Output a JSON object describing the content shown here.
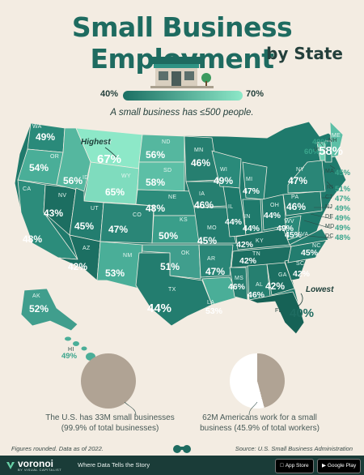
{
  "title": "Small Business Employment",
  "subtitle": "by State",
  "legend": {
    "min": "40%",
    "max": "70%"
  },
  "note": "A small business has ≤500 people.",
  "annotations": {
    "highest": "Highest",
    "lowest": "Lowest"
  },
  "colors": {
    "dark": "#1b6f63",
    "light": "#8de8c8",
    "background": "#f3ece2",
    "title": "#1e6b60",
    "footer": "#1a3c38"
  },
  "states": [
    {
      "code": "WA",
      "value": "49%"
    },
    {
      "code": "OR",
      "value": "54%"
    },
    {
      "code": "CA",
      "value": "48%"
    },
    {
      "code": "ID",
      "value": "56%"
    },
    {
      "code": "NV",
      "value": "43%"
    },
    {
      "code": "MT",
      "value": "67%"
    },
    {
      "code": "WY",
      "value": "65%"
    },
    {
      "code": "UT",
      "value": "45%"
    },
    {
      "code": "AZ",
      "value": "42%"
    },
    {
      "code": "CO",
      "value": "47%"
    },
    {
      "code": "NM",
      "value": "53%"
    },
    {
      "code": "ND",
      "value": "56%"
    },
    {
      "code": "SD",
      "value": "58%"
    },
    {
      "code": "NE",
      "value": "48%"
    },
    {
      "code": "KS",
      "value": "50%"
    },
    {
      "code": "OK",
      "value": "51%"
    },
    {
      "code": "TX",
      "value": "44%"
    },
    {
      "code": "MN",
      "value": "46%"
    },
    {
      "code": "IA",
      "value": "46%"
    },
    {
      "code": "MO",
      "value": "45%"
    },
    {
      "code": "AR",
      "value": "47%"
    },
    {
      "code": "LA",
      "value": "53%"
    },
    {
      "code": "WI",
      "value": "49%"
    },
    {
      "code": "IL",
      "value": "44%"
    },
    {
      "code": "MI",
      "value": "47%"
    },
    {
      "code": "IN",
      "value": "44%"
    },
    {
      "code": "OH",
      "value": "44%"
    },
    {
      "code": "KY",
      "value": "42%"
    },
    {
      "code": "TN",
      "value": "42%"
    },
    {
      "code": "MS",
      "value": "46%"
    },
    {
      "code": "AL",
      "value": "46%"
    },
    {
      "code": "GA",
      "value": "42%"
    },
    {
      "code": "FL",
      "value": "40%"
    },
    {
      "code": "SC",
      "value": "42%"
    },
    {
      "code": "NC",
      "value": "45%"
    },
    {
      "code": "VA",
      "value": "45%"
    },
    {
      "code": "WV",
      "value": "49%"
    },
    {
      "code": "PA",
      "value": "46%"
    },
    {
      "code": "NY",
      "value": "47%"
    },
    {
      "code": "VT",
      "value": "60%"
    },
    {
      "code": "NH",
      "value": "49%"
    },
    {
      "code": "ME",
      "value": "58%"
    },
    {
      "code": "MA",
      "value": "45%"
    },
    {
      "code": "RI",
      "value": "51%"
    },
    {
      "code": "CT",
      "value": "47%"
    },
    {
      "code": "NJ",
      "value": "49%"
    },
    {
      "code": "DE",
      "value": "49%"
    },
    {
      "code": "MD",
      "value": "49%"
    },
    {
      "code": "DC",
      "value": "48%"
    },
    {
      "code": "AK",
      "value": "52%"
    },
    {
      "code": "HI",
      "value": "49%"
    }
  ],
  "stats": [
    {
      "text": "The U.S. has 33M small businesses (99.9% of total businesses)",
      "fraction": 0.999
    },
    {
      "text": "62M Americans work for a small business (45.9% of total workers)",
      "fraction": 0.459
    }
  ],
  "footnote": "Figures rounded. Data as of 2022.",
  "source": "Source: U.S. Small Business Administration",
  "footer": {
    "brand": "voronoi",
    "brand_sub": "BY VISUAL CAPITALIST",
    "tagline": "Where Data Tells the Story",
    "app_store": "App Store",
    "google_play": "Google Play"
  }
}
